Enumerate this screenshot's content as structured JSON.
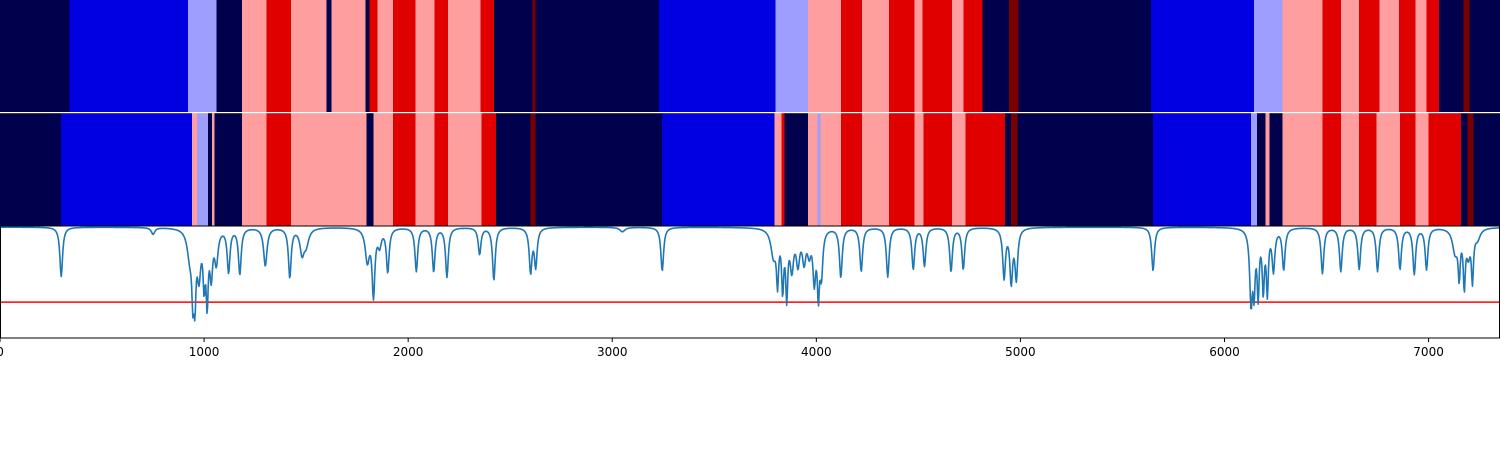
{
  "chart_data": {
    "type": "heatmap",
    "x_axis": {
      "range": [
        0,
        7350
      ],
      "ticks": [
        0,
        1000,
        2000,
        3000,
        4000,
        5000,
        6000,
        7000
      ],
      "tick_labels": [
        "0",
        "1000",
        "2000",
        "3000",
        "4000",
        "5000",
        "6000",
        "7000"
      ]
    },
    "state_colors": {
      "0": "#00004c",
      "1": "#0000e0",
      "2": "#9e9eff",
      "3": "#ff9e9e",
      "4": "#e00000",
      "5": "#7a0000"
    },
    "segment_rows": [
      {
        "segments": [
          [
            0,
            340,
            0
          ],
          [
            340,
            920,
            1
          ],
          [
            920,
            1060,
            2
          ],
          [
            1060,
            1185,
            0
          ],
          [
            1185,
            1305,
            3
          ],
          [
            1305,
            1425,
            4
          ],
          [
            1425,
            1600,
            3
          ],
          [
            1600,
            1625,
            0
          ],
          [
            1625,
            1790,
            3
          ],
          [
            1790,
            1810,
            0
          ],
          [
            1810,
            1850,
            4
          ],
          [
            1850,
            1925,
            3
          ],
          [
            1925,
            2035,
            4
          ],
          [
            2035,
            2130,
            3
          ],
          [
            2130,
            2195,
            4
          ],
          [
            2195,
            2355,
            3
          ],
          [
            2355,
            2420,
            4
          ],
          [
            2420,
            2610,
            0
          ],
          [
            2610,
            2625,
            5
          ],
          [
            2625,
            3230,
            0
          ],
          [
            3230,
            3800,
            1
          ],
          [
            3800,
            3960,
            2
          ],
          [
            3960,
            4120,
            3
          ],
          [
            4120,
            4225,
            4
          ],
          [
            4225,
            4355,
            3
          ],
          [
            4355,
            4480,
            4
          ],
          [
            4480,
            4520,
            3
          ],
          [
            4520,
            4665,
            4
          ],
          [
            4665,
            4720,
            3
          ],
          [
            4720,
            4815,
            4
          ],
          [
            4815,
            4945,
            0
          ],
          [
            4945,
            4990,
            5
          ],
          [
            4990,
            5640,
            0
          ],
          [
            5640,
            6145,
            1
          ],
          [
            6145,
            6285,
            2
          ],
          [
            6285,
            6480,
            3
          ],
          [
            6480,
            6570,
            4
          ],
          [
            6570,
            6660,
            3
          ],
          [
            6660,
            6760,
            4
          ],
          [
            6760,
            6855,
            3
          ],
          [
            6855,
            6935,
            4
          ],
          [
            6935,
            6990,
            3
          ],
          [
            6990,
            7050,
            4
          ],
          [
            7050,
            7170,
            0
          ],
          [
            7170,
            7200,
            5
          ],
          [
            7200,
            7350,
            0
          ]
        ]
      },
      {
        "segments": [
          [
            0,
            300,
            0
          ],
          [
            300,
            940,
            1
          ],
          [
            940,
            965,
            3
          ],
          [
            965,
            1020,
            2
          ],
          [
            1020,
            1040,
            0
          ],
          [
            1040,
            1050,
            3
          ],
          [
            1050,
            1185,
            0
          ],
          [
            1185,
            1305,
            3
          ],
          [
            1305,
            1425,
            4
          ],
          [
            1425,
            1795,
            3
          ],
          [
            1795,
            1830,
            0
          ],
          [
            1830,
            1925,
            3
          ],
          [
            1925,
            2035,
            4
          ],
          [
            2035,
            2130,
            3
          ],
          [
            2130,
            2195,
            4
          ],
          [
            2195,
            2360,
            3
          ],
          [
            2360,
            2430,
            4
          ],
          [
            2430,
            2600,
            0
          ],
          [
            2600,
            2625,
            5
          ],
          [
            2625,
            3245,
            0
          ],
          [
            3245,
            3795,
            1
          ],
          [
            3795,
            3830,
            3
          ],
          [
            3830,
            3845,
            4
          ],
          [
            3845,
            3960,
            0
          ],
          [
            3960,
            4005,
            3
          ],
          [
            4005,
            4020,
            2
          ],
          [
            4020,
            4120,
            3
          ],
          [
            4120,
            4225,
            4
          ],
          [
            4225,
            4355,
            3
          ],
          [
            4355,
            4480,
            4
          ],
          [
            4480,
            4525,
            3
          ],
          [
            4525,
            4665,
            4
          ],
          [
            4665,
            4730,
            3
          ],
          [
            4730,
            4925,
            4
          ],
          [
            4925,
            4955,
            0
          ],
          [
            4955,
            4985,
            5
          ],
          [
            4985,
            5650,
            0
          ],
          [
            5650,
            6130,
            1
          ],
          [
            6130,
            6160,
            2
          ],
          [
            6160,
            6200,
            0
          ],
          [
            6200,
            6220,
            3
          ],
          [
            6220,
            6285,
            0
          ],
          [
            6285,
            6480,
            3
          ],
          [
            6480,
            6570,
            4
          ],
          [
            6570,
            6660,
            3
          ],
          [
            6660,
            6745,
            4
          ],
          [
            6745,
            6860,
            3
          ],
          [
            6860,
            6935,
            4
          ],
          [
            6935,
            7000,
            3
          ],
          [
            7000,
            7160,
            4
          ],
          [
            7160,
            7190,
            0
          ],
          [
            7190,
            7220,
            5
          ],
          [
            7220,
            7350,
            0
          ]
        ]
      }
    ],
    "trace": {
      "color": "#1f77b4",
      "baseline": 0.99,
      "ylim": [
        0,
        1
      ],
      "dips": [
        [
          300,
          0.55,
          8
        ],
        [
          750,
          0.93,
          10
        ],
        [
          930,
          0.75,
          15
        ],
        [
          945,
          0.5,
          6
        ],
        [
          955,
          0.45,
          6
        ],
        [
          975,
          0.6,
          10
        ],
        [
          1000,
          0.55,
          6
        ],
        [
          1015,
          0.38,
          6
        ],
        [
          1035,
          0.6,
          8
        ],
        [
          1060,
          0.7,
          10
        ],
        [
          1120,
          0.6,
          8
        ],
        [
          1175,
          0.58,
          8
        ],
        [
          1300,
          0.65,
          10
        ],
        [
          1420,
          0.55,
          8
        ],
        [
          1480,
          0.78,
          12
        ],
        [
          1500,
          0.85,
          15
        ],
        [
          1800,
          0.7,
          12
        ],
        [
          1830,
          0.4,
          8
        ],
        [
          1860,
          0.85,
          10
        ],
        [
          1900,
          0.6,
          8
        ],
        [
          2040,
          0.6,
          8
        ],
        [
          2125,
          0.6,
          8
        ],
        [
          2190,
          0.55,
          8
        ],
        [
          2350,
          0.75,
          8
        ],
        [
          2420,
          0.52,
          8
        ],
        [
          2600,
          0.6,
          8
        ],
        [
          2625,
          0.65,
          8
        ],
        [
          3050,
          0.95,
          15
        ],
        [
          3245,
          0.6,
          8
        ],
        [
          3790,
          0.75,
          15
        ],
        [
          3810,
          0.55,
          6
        ],
        [
          3835,
          0.48,
          6
        ],
        [
          3855,
          0.42,
          6
        ],
        [
          3880,
          0.65,
          10
        ],
        [
          3910,
          0.7,
          10
        ],
        [
          3940,
          0.72,
          10
        ],
        [
          3965,
          0.8,
          10
        ],
        [
          3990,
          0.55,
          8
        ],
        [
          4010,
          0.45,
          6
        ],
        [
          4025,
          0.6,
          8
        ],
        [
          4120,
          0.55,
          8
        ],
        [
          4220,
          0.6,
          8
        ],
        [
          4350,
          0.55,
          8
        ],
        [
          4475,
          0.62,
          8
        ],
        [
          4530,
          0.65,
          8
        ],
        [
          4660,
          0.6,
          8
        ],
        [
          4720,
          0.62,
          8
        ],
        [
          4920,
          0.55,
          8
        ],
        [
          4955,
          0.52,
          8
        ],
        [
          4980,
          0.55,
          8
        ],
        [
          5650,
          0.6,
          8
        ],
        [
          6130,
          0.34,
          8
        ],
        [
          6145,
          0.5,
          6
        ],
        [
          6165,
          0.42,
          6
        ],
        [
          6190,
          0.46,
          6
        ],
        [
          6210,
          0.44,
          6
        ],
        [
          6240,
          0.62,
          8
        ],
        [
          6290,
          0.62,
          8
        ],
        [
          6480,
          0.58,
          8
        ],
        [
          6570,
          0.6,
          8
        ],
        [
          6660,
          0.62,
          8
        ],
        [
          6750,
          0.6,
          8
        ],
        [
          6860,
          0.62,
          8
        ],
        [
          6930,
          0.58,
          8
        ],
        [
          6990,
          0.62,
          8
        ],
        [
          7130,
          0.78,
          15
        ],
        [
          7150,
          0.6,
          6
        ],
        [
          7175,
          0.5,
          6
        ],
        [
          7195,
          0.78,
          10
        ],
        [
          7215,
          0.55,
          6
        ],
        [
          7240,
          0.9,
          15
        ]
      ]
    },
    "threshold": {
      "value": 0.32,
      "color": "#ff0000"
    }
  }
}
